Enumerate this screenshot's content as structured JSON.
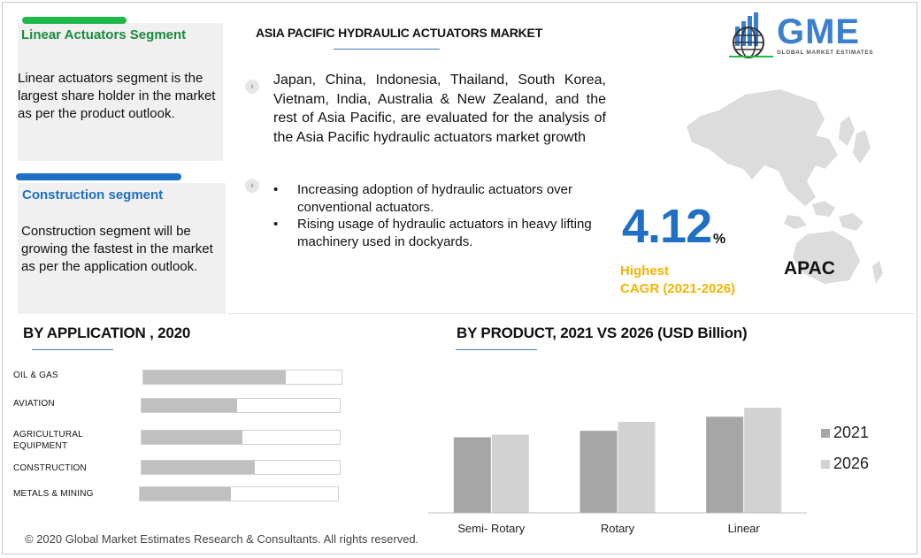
{
  "cards": [
    {
      "title": "Linear Actuators Segment",
      "title_color": "#1a8a3c",
      "bar_color": "#1fb84a",
      "body": "Linear actuators segment is the largest share holder in the market as per the product outlook."
    },
    {
      "title": "Construction segment",
      "title_color": "#1f6fc5",
      "bar_color": "#1f6fc5",
      "body": "Construction segment will be growing the fastest in the market as per the application outlook."
    }
  ],
  "main": {
    "title": "ASIA PACIFIC HYDRAULIC ACTUATORS MARKET",
    "paragraph": "Japan, China, Indonesia, Thailand, South Korea, Vietnam, India, Australia & New Zealand, and the rest of Asia Pacific, are evaluated for the analysis of the Asia Pacific hydraulic actuators market  growth",
    "bullets": [
      "Increasing adoption of hydraulic actuators over conventional actuators.",
      "Rising usage of hydraulic actuators in heavy lifting machinery used in dockyards."
    ],
    "chevron_icon": "chevron-right-icon"
  },
  "logo": {
    "text": "GME",
    "subtitle": "GLOBAL MARKET ESTIMATES",
    "color": "#3a7fd0"
  },
  "cagr": {
    "value": "4.12",
    "unit": "%",
    "label_line1": "Highest",
    "label_line2": "CAGR (2021-2026)",
    "region": "APAC",
    "value_color": "#1f6fc5",
    "label_color": "#f2b400"
  },
  "application": {
    "title": "BY  APPLICATION , 2020",
    "items": [
      {
        "label": "OIL & GAS",
        "fill": 0.72
      },
      {
        "label": "AVIATION",
        "fill": 0.48
      },
      {
        "label": "AGRICULTURAL EQUIPMENT",
        "fill": 0.51
      },
      {
        "label": "CONSTRUCTION",
        "fill": 0.57
      },
      {
        "label": "METALS & MINING",
        "fill": 0.46
      }
    ],
    "bar_color": "#c0c0c0"
  },
  "chart_data": {
    "type": "bar",
    "title": "BY  PRODUCT,  2021 VS 2026 (USD Billion)",
    "categories": [
      "Semi- Rotary",
      "Rotary",
      "Linear"
    ],
    "series": [
      {
        "name": "2021",
        "values": [
          0.59,
          0.64,
          0.75
        ],
        "color": "#a6a6a6"
      },
      {
        "name": "2026",
        "values": [
          0.61,
          0.71,
          0.82
        ],
        "color": "#d2d2d2"
      }
    ],
    "ylim": [
      0,
      1
    ],
    "legend": "right",
    "grid": false
  },
  "footer": "© 2020 Global Market Estimates Research & Consultants. All rights reserved."
}
